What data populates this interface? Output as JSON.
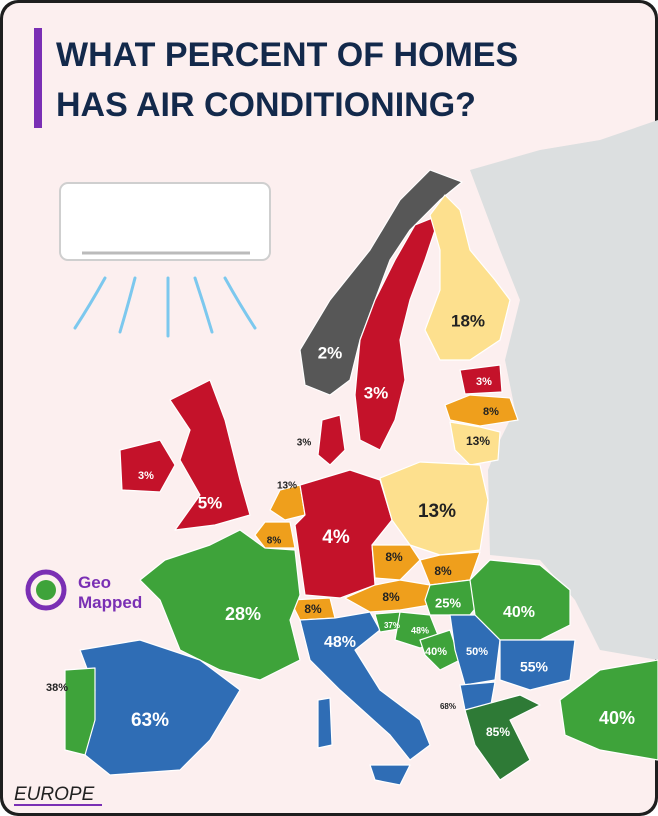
{
  "header": {
    "title_lines": [
      "WHAT PERCENT OF HOMES",
      "HAS AIR CONDITIONING?"
    ]
  },
  "logo": {
    "line1": "Geo",
    "line2": "Mapped"
  },
  "footer": {
    "region": "EUROPE"
  },
  "labels": [
    {
      "text": "2%"
    },
    {
      "text": "3%"
    },
    {
      "text": "18%"
    },
    {
      "text": "3%"
    },
    {
      "text": "8%"
    },
    {
      "text": "13%"
    },
    {
      "text": "3%"
    },
    {
      "text": "3%"
    },
    {
      "text": "5%"
    },
    {
      "text": "13%"
    },
    {
      "text": "8%"
    },
    {
      "text": "4%"
    },
    {
      "text": "13%"
    },
    {
      "text": "8%"
    },
    {
      "text": "8%"
    },
    {
      "text": "8%"
    },
    {
      "text": "8%"
    },
    {
      "text": "25%"
    },
    {
      "text": "40%"
    },
    {
      "text": "28%"
    },
    {
      "text": "48%"
    },
    {
      "text": "37%"
    },
    {
      "text": "48%"
    },
    {
      "text": "40%"
    },
    {
      "text": "50%"
    },
    {
      "text": "55%"
    },
    {
      "text": "38%"
    },
    {
      "text": "63%"
    },
    {
      "text": "68%"
    },
    {
      "text": "85%"
    },
    {
      "text": "40%"
    }
  ]
}
